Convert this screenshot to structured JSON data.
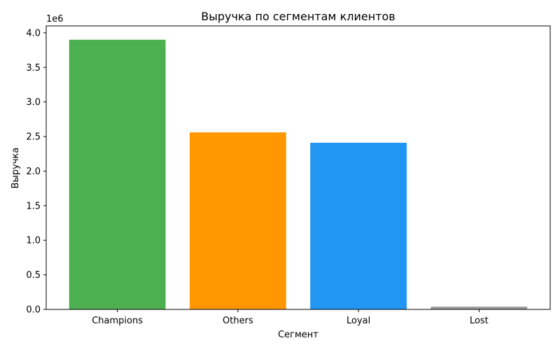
{
  "chart_data": {
    "type": "bar",
    "title": "Выручка по сегментам клиентов",
    "xlabel": "Сегмент",
    "ylabel": "Выручка",
    "y_scale_label": "1e6",
    "categories": [
      "Champions",
      "Others",
      "Loyal",
      "Lost"
    ],
    "values": [
      3900000,
      2560000,
      2410000,
      40000
    ],
    "colors": [
      "#4caf50",
      "#ff9800",
      "#2196f3",
      "#9e9e9e"
    ],
    "ylim": [
      0,
      4100000
    ],
    "yticks": [
      0,
      500000,
      1000000,
      1500000,
      2000000,
      2500000,
      3000000,
      3500000,
      4000000
    ],
    "ytick_labels": [
      "0.0",
      "0.5",
      "1.0",
      "1.5",
      "2.0",
      "2.5",
      "3.0",
      "3.5",
      "4.0"
    ],
    "grid": false,
    "legend": "none"
  }
}
